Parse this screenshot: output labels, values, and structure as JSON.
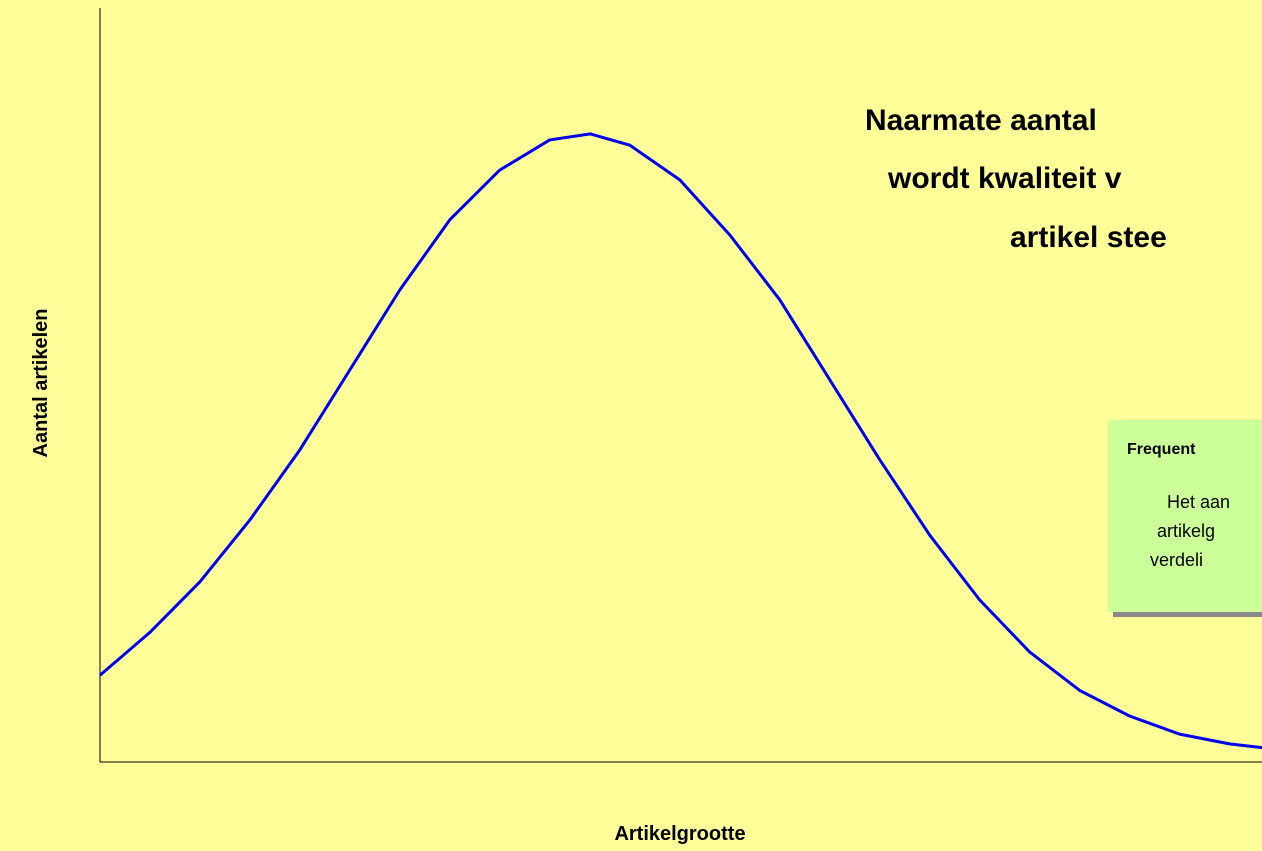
{
  "chart_data": {
    "type": "line",
    "annotation": {
      "lines": [
        "Naarmate aantal",
        "wordt kwaliteit v",
        "artikel stee"
      ]
    },
    "note_box": {
      "title": "Frequent",
      "lines": [
        "Het aan",
        "artikelg",
        "verdeli"
      ]
    },
    "xlabel": "Artikelgrootte",
    "ylabel": "Aantal artikelen",
    "x": [
      0,
      4.3,
      8.6,
      12.9,
      17.2,
      21.5,
      25.8,
      30.1,
      34.4,
      38.7,
      42.2,
      45.6,
      49.9,
      54.2,
      58.5,
      62.8,
      67.1,
      71.4,
      75.7,
      80.0,
      84.3,
      88.6,
      92.9,
      97.2,
      100
    ],
    "series": [
      {
        "color": "#0000ee",
        "values": [
          11.5,
          17.2,
          23.9,
          32.1,
          41.4,
          52.0,
          62.6,
          71.9,
          78.5,
          82.5,
          83.3,
          81.8,
          77.2,
          69.9,
          61.3,
          50.7,
          40.1,
          30.1,
          21.5,
          14.6,
          9.5,
          6.1,
          3.7,
          2.4,
          1.9
        ]
      }
    ],
    "xlim": [
      0,
      100
    ],
    "ylim": [
      0,
      100
    ]
  }
}
